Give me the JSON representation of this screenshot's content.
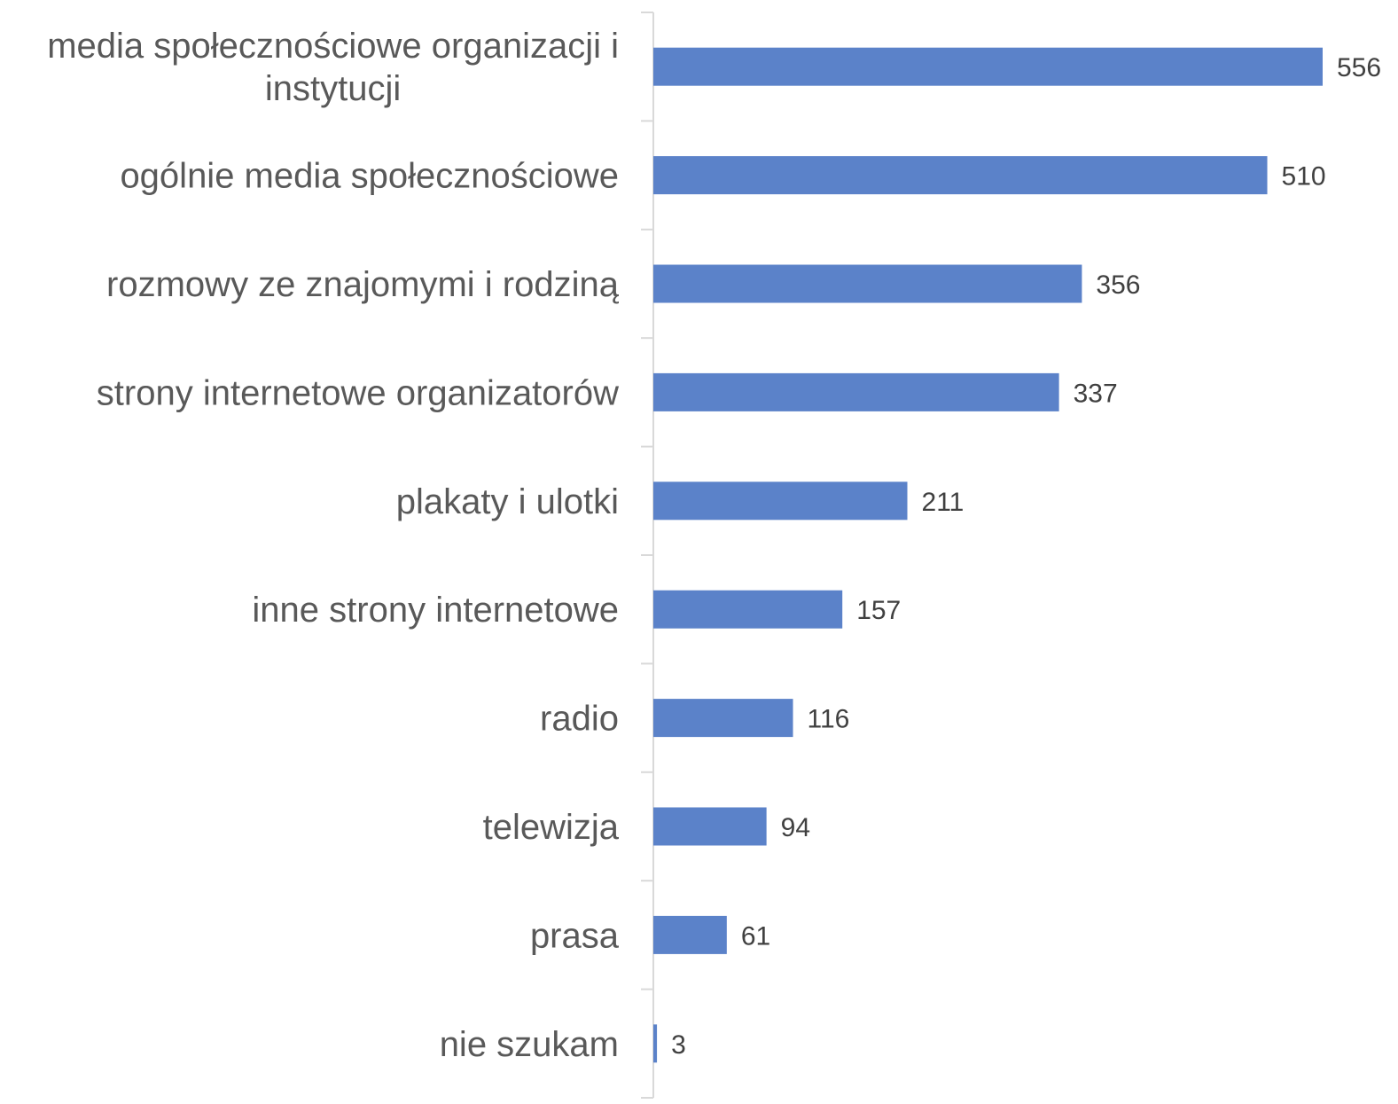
{
  "chart_data": {
    "type": "bar",
    "orientation": "horizontal",
    "categories": [
      [
        "media społecznościowe organizacji i",
        "instytucji"
      ],
      [
        "ogólnie media społecznościowe"
      ],
      [
        "rozmowy ze znajomymi i rodziną"
      ],
      [
        "strony internetowe organizatorów"
      ],
      [
        "plakaty i ulotki"
      ],
      [
        "inne strony internetowe"
      ],
      [
        "radio"
      ],
      [
        "telewizja"
      ],
      [
        "prasa"
      ],
      [
        "nie szukam"
      ]
    ],
    "values": [
      556,
      510,
      356,
      337,
      211,
      157,
      116,
      94,
      61,
      3
    ],
    "value_labels": [
      "556",
      "510",
      "356",
      "337",
      "211",
      "157",
      "116",
      "94",
      "61",
      "3"
    ],
    "xlim": [
      0,
      556
    ],
    "grid": false,
    "legend": "none",
    "bar_color": "#5b82c9",
    "axis_color": "#d9d9d9"
  }
}
